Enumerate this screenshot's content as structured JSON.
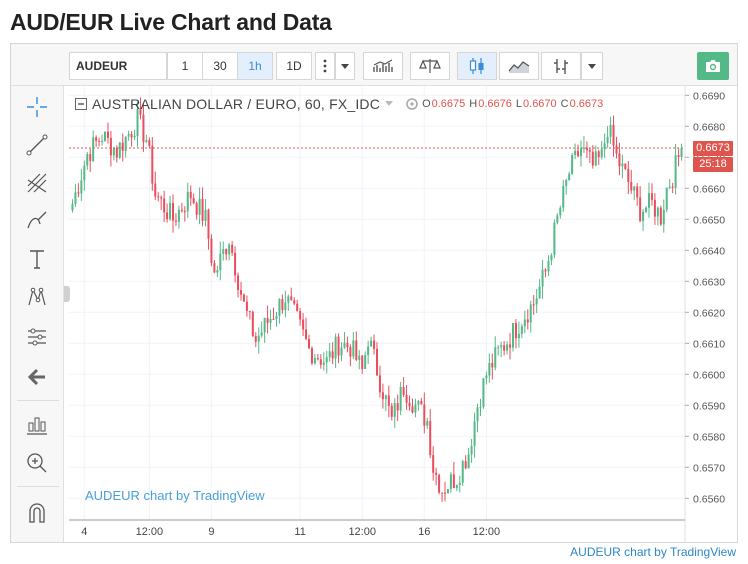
{
  "page_title": "AUD/EUR Live Chart and Data",
  "toolbar": {
    "symbol": "AUDEUR",
    "intervals": [
      "1",
      "30",
      "1h",
      "1D"
    ],
    "active_interval": "1h",
    "more_icon": "vertical-dots-icon",
    "chart_type_icons": [
      "indicators-icon",
      "compare-icon",
      "candles-icon",
      "area-icon",
      "bars-icon"
    ],
    "snapshot_icon": "camera-icon"
  },
  "left_tools": [
    "crosshair-icon",
    "trend-line-icon",
    "fib-icon",
    "brush-icon",
    "text-icon",
    "pattern-icon",
    "prediction-icon",
    "back-arrow-icon",
    "ruler-icon",
    "zoom-in-icon",
    "magnet-icon"
  ],
  "legend": {
    "title": "AUSTRALIAN DOLLAR / EURO, 60, FX_IDC",
    "o_label": "O",
    "o_value": "0.6675",
    "h_label": "H",
    "h_value": "0.6676",
    "l_label": "L",
    "l_value": "0.6670",
    "c_label": "C",
    "c_value": "0.6673"
  },
  "price_badge": "0.6673",
  "countdown_badge": "25:18",
  "watermark": "AUDEUR chart by TradingView",
  "footer_link": "AUDEUR chart by TradingView",
  "colors": {
    "up": "#53b987",
    "down": "#eb4d5c",
    "grid": "#f0f3fa",
    "price_line": "#e0544e"
  },
  "chart_data": {
    "type": "candlestick",
    "ylim": [
      0.6553,
      0.6693
    ],
    "y_ticks": [
      "0.6690",
      "0.6680",
      "0.6670",
      "0.6660",
      "0.6650",
      "0.6640",
      "0.6630",
      "0.6620",
      "0.6610",
      "0.6600",
      "0.6590",
      "0.6580",
      "0.6570",
      "0.6560"
    ],
    "x_ticks": [
      {
        "label": "4",
        "i": 4
      },
      {
        "label": "12:00",
        "i": 26
      },
      {
        "label": "9",
        "i": 47
      },
      {
        "label": "11",
        "i": 77
      },
      {
        "label": "12:00",
        "i": 98
      },
      {
        "label": "16",
        "i": 119
      },
      {
        "label": "12:00",
        "i": 140
      }
    ],
    "last_price": 0.6673,
    "close_path": [
      [
        0,
        0.6655
      ],
      [
        5,
        0.6671
      ],
      [
        10,
        0.6677
      ],
      [
        15,
        0.6672
      ],
      [
        20,
        0.6679
      ],
      [
        22,
        0.6682
      ],
      [
        25,
        0.6676
      ],
      [
        28,
        0.6658
      ],
      [
        34,
        0.665
      ],
      [
        40,
        0.6658
      ],
      [
        45,
        0.665
      ],
      [
        48,
        0.6632
      ],
      [
        53,
        0.6644
      ],
      [
        58,
        0.6622
      ],
      [
        62,
        0.6611
      ],
      [
        66,
        0.6617
      ],
      [
        72,
        0.6625
      ],
      [
        76,
        0.6617
      ],
      [
        80,
        0.6608
      ],
      [
        86,
        0.6604
      ],
      [
        90,
        0.661
      ],
      [
        94,
        0.6609
      ],
      [
        98,
        0.6601
      ],
      [
        100,
        0.6612
      ],
      [
        104,
        0.6598
      ],
      [
        108,
        0.6585
      ],
      [
        112,
        0.6596
      ],
      [
        116,
        0.659
      ],
      [
        120,
        0.6585
      ],
      [
        122,
        0.657
      ],
      [
        125,
        0.6563
      ],
      [
        130,
        0.6567
      ],
      [
        134,
        0.6575
      ],
      [
        137,
        0.659
      ],
      [
        140,
        0.66
      ],
      [
        144,
        0.6607
      ],
      [
        148,
        0.6612
      ],
      [
        152,
        0.6618
      ],
      [
        156,
        0.6623
      ],
      [
        160,
        0.6633
      ],
      [
        164,
        0.665
      ],
      [
        168,
        0.6665
      ],
      [
        172,
        0.6673
      ],
      [
        176,
        0.6667
      ],
      [
        179,
        0.667
      ],
      [
        181,
        0.668
      ],
      [
        184,
        0.667
      ],
      [
        188,
        0.6662
      ],
      [
        192,
        0.6653
      ],
      [
        196,
        0.6655
      ],
      [
        199,
        0.6651
      ],
      [
        201,
        0.666
      ],
      [
        203,
        0.6664
      ],
      [
        206,
        0.6673
      ]
    ]
  }
}
